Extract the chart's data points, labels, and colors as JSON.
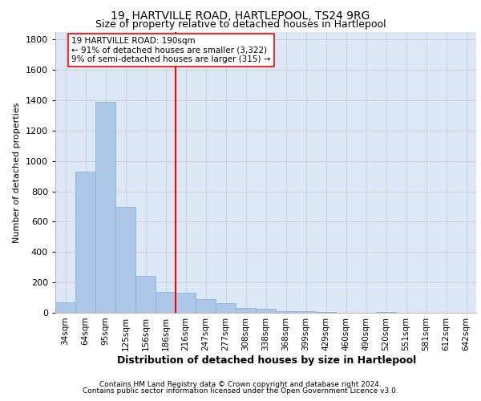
{
  "title": "19, HARTVILLE ROAD, HARTLEPOOL, TS24 9RG",
  "subtitle": "Size of property relative to detached houses in Hartlepool",
  "xlabel": "Distribution of detached houses by size in Hartlepool",
  "ylabel": "Number of detached properties",
  "categories": [
    "34sqm",
    "64sqm",
    "95sqm",
    "125sqm",
    "156sqm",
    "186sqm",
    "216sqm",
    "247sqm",
    "277sqm",
    "308sqm",
    "338sqm",
    "368sqm",
    "399sqm",
    "429sqm",
    "460sqm",
    "490sqm",
    "520sqm",
    "551sqm",
    "581sqm",
    "612sqm",
    "642sqm"
  ],
  "values": [
    70,
    930,
    1390,
    700,
    245,
    135,
    130,
    90,
    65,
    30,
    25,
    10,
    8,
    5,
    0,
    0,
    4,
    0,
    0,
    0,
    0
  ],
  "bar_color": "#aec6e8",
  "bar_edge_color": "#7aafd4",
  "grid_color": "#cccccc",
  "background_color": "#dce8f5",
  "red_line_x": 5.5,
  "annotation_line1": "19 HARTVILLE ROAD: 190sqm",
  "annotation_line2": "← 91% of detached houses are smaller (3,322)",
  "annotation_line3": "9% of semi-detached houses are larger (315) →",
  "footer_line1": "Contains HM Land Registry data © Crown copyright and database right 2024.",
  "footer_line2": "Contains public sector information licensed under the Open Government Licence v3.0.",
  "ylim": [
    0,
    1850
  ],
  "yticks": [
    0,
    200,
    400,
    600,
    800,
    1000,
    1200,
    1400,
    1600,
    1800
  ],
  "title_fontsize": 10,
  "subtitle_fontsize": 9
}
